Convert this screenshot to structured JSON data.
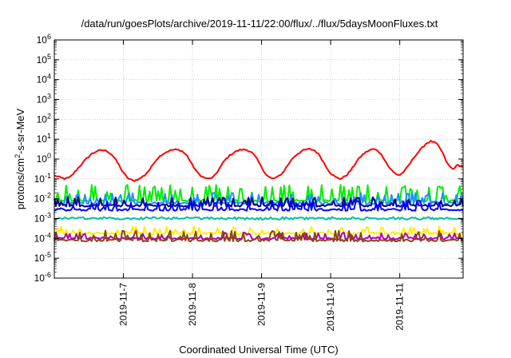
{
  "chart_data": {
    "type": "line",
    "title": "/data/run/goesPlots/archive/2019-11-11/22:00/flux/../flux/5daysMoonFluxes.txt",
    "xlabel": "Coordinated Universal Time (UTC)",
    "ylabel": {
      "base": "protons/cm",
      "sup": "2",
      "rest": "-s-sr-MeV"
    },
    "yscale": "log",
    "ylim": [
      1e-06,
      1000000.0
    ],
    "y_tick_exponents": [
      -6,
      -5,
      -4,
      -3,
      -2,
      -1,
      0,
      1,
      2,
      3,
      4,
      5,
      6
    ],
    "xlim": [
      "2019-11-06 00:00",
      "2019-11-11 22:00"
    ],
    "x_ticks": [
      "2019-11-7",
      "2019-11-8",
      "2019-11-9",
      "2019-11-10",
      "2019-11-11"
    ],
    "grid": true,
    "series": [
      {
        "color": "#ff0000",
        "diurnal": true,
        "base": [
          0.15,
          0.12,
          0.1,
          0.12,
          0.25,
          0.5,
          1.0,
          1.8,
          2.5,
          2.8,
          2.5,
          1.5,
          0.6,
          0.2,
          0.1,
          0.08,
          0.1,
          0.15,
          0.3,
          0.8,
          1.5,
          2.2,
          2.8,
          3.0,
          2.6,
          1.5,
          0.5,
          0.2,
          0.12,
          0.1,
          0.12,
          0.3,
          0.8,
          1.5,
          2.3,
          2.9,
          3.0,
          2.4,
          1.2,
          0.4,
          0.15,
          0.1,
          0.12,
          0.2,
          0.5,
          1.2,
          2.0,
          2.8,
          3.2,
          2.8,
          1.5,
          0.5,
          0.2,
          0.12,
          0.1,
          0.15,
          0.3,
          0.8,
          1.6,
          2.5,
          3.2,
          2.6,
          1.2,
          0.4,
          0.2,
          0.15,
          0.25,
          0.6,
          1.5,
          3.0,
          6.0,
          8.0,
          6.0,
          2.5,
          0.6,
          0.3,
          0.5,
          0.4
        ]
      },
      {
        "color": "#00ee00",
        "base": 0.008,
        "spikes": 0.05
      },
      {
        "color": "#1e90ff",
        "base": 0.006,
        "spikes": 0.02
      },
      {
        "color": "#00008b",
        "base": 0.0045,
        "spikes": 0.012
      },
      {
        "color": "#0000ff",
        "base": 0.0028,
        "spikes": 0.008
      },
      {
        "color": "#00c0a0",
        "base": 0.001,
        "spikes": 0.0012
      },
      {
        "color": "#ffee00",
        "base": 0.00018,
        "spikes": 0.0004
      },
      {
        "color": "#b000b0",
        "base": 0.0001,
        "spikes": 0.0002
      },
      {
        "color": "#8b4513",
        "base": 8e-05,
        "spikes": 0.00025
      }
    ]
  }
}
